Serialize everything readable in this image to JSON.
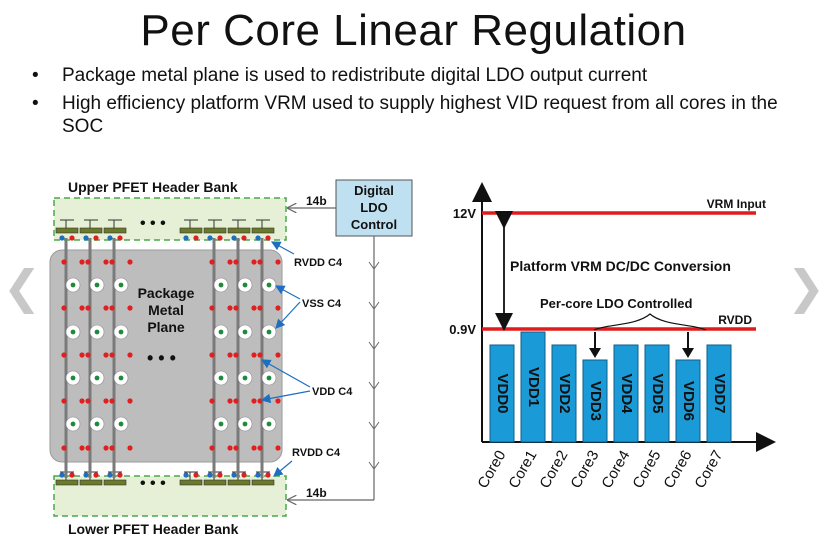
{
  "slide": {
    "title": "Per Core Linear Regulation",
    "bullet_symbol": "•",
    "bullets": [
      "Package metal plane is used to redistribute digital LDO output current",
      "High efficiency platform VRM used to supply highest VID request from all cores in the SOC"
    ]
  },
  "nav": {
    "prev_label": "❮",
    "next_label": "❯"
  },
  "left_diagram": {
    "upper_bank_label": "Upper PFET Header Bank",
    "lower_bank_label": "Lower PFET Header Bank",
    "ldo_control_lines": [
      "Digital",
      "LDO",
      "Control"
    ],
    "bus_width_upper": "14b",
    "bus_width_lower": "14b",
    "ellipsis": "• • •",
    "plane_label_lines": [
      "Package",
      "Metal",
      "Plane"
    ],
    "rvdd_c4_upper": "RVDD C4",
    "vss_c4": "VSS C4",
    "vdd_c4": "VDD C4",
    "rvdd_c4_lower": "RVDD C4",
    "colors": {
      "bank_fill": "#e6f0d6",
      "bank_border": "#4aa84a",
      "ldo_fill": "#bfe0f0",
      "plane_fill": "#bdbdbd",
      "rvdd_dot": "#e02020",
      "vdd_dot": "#1f6fc0",
      "vss_dot": "#1e8a3a"
    }
  },
  "right_diagram": {
    "level_12v": "12V",
    "level_09v": "0.9V",
    "vrm_input": "VRM Input",
    "rvdd": "RVDD",
    "conversion_label": "Platform VRM DC/DC Conversion",
    "ldo_label": "Per-core LDO Controlled",
    "bars": [
      "VDD0",
      "VDD1",
      "VDD2",
      "VDD3",
      "VDD4",
      "VDD5",
      "VDD6",
      "VDD7"
    ],
    "cores": [
      "Core0",
      "Core1",
      "Core2",
      "Core3",
      "Core4",
      "Core5",
      "Core6",
      "Core7"
    ],
    "colors": {
      "bar": "#1a9ad6",
      "bar_border": "#0d5f8a",
      "rail": "#e01b1b"
    }
  }
}
